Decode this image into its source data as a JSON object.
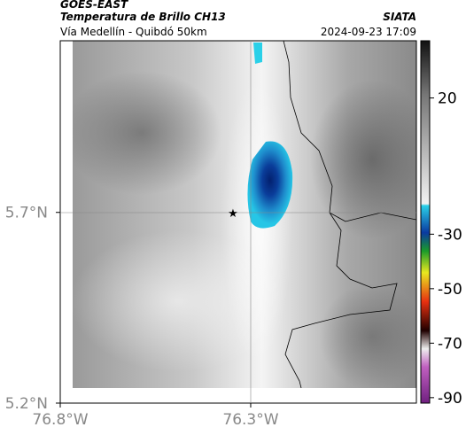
{
  "header": {
    "satellite": "GOES-EAST",
    "product": "Temperatura de Brillo CH13",
    "region": "Vía Medellín - Quibdó 50km",
    "source": "SIATA",
    "timestamp": "2024-09-23 17:09"
  },
  "map": {
    "xlim": [
      -76.8,
      -75.865
    ],
    "ylim": [
      5.2,
      6.15
    ],
    "xticks": [
      {
        "value": -76.8,
        "label": "76.8°W"
      },
      {
        "value": -76.3,
        "label": "76.3°W"
      }
    ],
    "yticks": [
      {
        "value": 5.2,
        "label": "5.2°N"
      },
      {
        "value": 5.7,
        "label": "5.7°N"
      }
    ]
  },
  "colorbar": {
    "clim": [
      -92,
      41
    ],
    "ticks": [
      20,
      -30,
      -50,
      -70,
      -90
    ]
  }
}
